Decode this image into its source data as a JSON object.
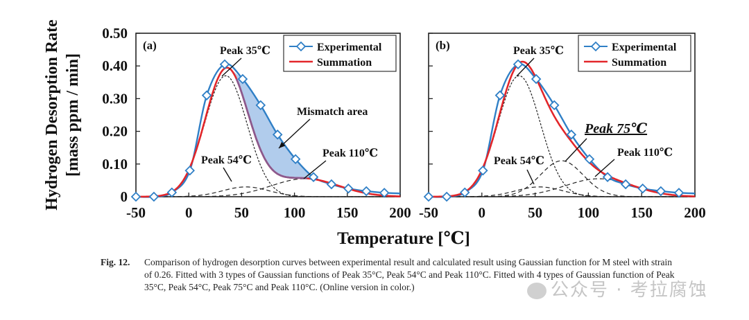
{
  "figure": {
    "ylabel_line1": "Hydrogen Desorption Rate",
    "ylabel_line2": "[mass ppm / min]",
    "xlabel": "Temperature [℃]",
    "caption_label": "Fig. 12.",
    "caption_text": "Comparison of hydrogen desorption curves between experimental result and calculated result using Gaussian function for M steel with strain of 0.26. Fitted with 3 types of Gaussian functions of Peak 35°C, Peak 54°C and Peak 110°C. Fitted with 4 types of Gaussian function of Peak 35°C, Peak 54°C, Peak 75°C and Peak 110°C. (Online version in color.)",
    "watermark": "公众号 · 考拉腐蚀"
  },
  "chart_data": [
    {
      "type": "line",
      "panel_label": "(a)",
      "title": "",
      "xlabel": "Temperature [℃]",
      "ylabel": "Hydrogen Desorption Rate [mass ppm / min]",
      "xlim": [
        -50,
        200
      ],
      "ylim": [
        0,
        0.5
      ],
      "xticks": [
        "-50",
        "0",
        "50",
        "100",
        "150",
        "200"
      ],
      "xtick_values": [
        -50,
        0,
        50,
        100,
        150,
        200
      ],
      "yticks": [
        "0",
        "0.10",
        "0.20",
        "0.30",
        "0.40",
        "0.50"
      ],
      "ytick_values": [
        0,
        0.1,
        0.2,
        0.3,
        0.4,
        0.5
      ],
      "grid": false,
      "legend": {
        "position": "top-right",
        "entries": [
          "Experimental",
          "Summation"
        ]
      },
      "colors": {
        "experimental": "#2f7fc6",
        "summation": "#e3262a",
        "mismatch_fill": "#a9c7ea",
        "components": "#222222"
      },
      "series": [
        {
          "name": "Experimental",
          "marker": "diamond",
          "x": [
            -50,
            -33,
            -16,
            1,
            17,
            34,
            51,
            68,
            84,
            101,
            118,
            135,
            151,
            168,
            185,
            200
          ],
          "y": [
            0.0,
            0.0,
            0.013,
            0.08,
            0.31,
            0.405,
            0.36,
            0.28,
            0.19,
            0.115,
            0.06,
            0.038,
            0.025,
            0.017,
            0.012,
            0.01
          ]
        },
        {
          "name": "Summation",
          "gaussians": [
            {
              "center": 35,
              "amp": 0.37,
              "sigma": 20
            },
            {
              "center": 54,
              "amp": 0.03,
              "sigma": 22
            },
            {
              "center": 110,
              "amp": 0.055,
              "sigma": 32
            }
          ]
        }
      ],
      "components": [
        {
          "name": "Peak 35℃",
          "center": 35,
          "amp": 0.37,
          "sigma": 20,
          "style": "dotted"
        },
        {
          "name": "Peak 54℃",
          "center": 54,
          "amp": 0.03,
          "sigma": 22,
          "style": "dashed"
        },
        {
          "name": "Peak 110℃",
          "center": 110,
          "amp": 0.055,
          "sigma": 32,
          "style": "dashed"
        }
      ],
      "annotations": [
        {
          "text": "Peak 35℃",
          "target_x": 38,
          "target_y": 0.37
        },
        {
          "text": "Peak 54℃",
          "target_x": 58,
          "target_y": 0.03
        },
        {
          "text": "Peak 110℃",
          "target_x": 110,
          "target_y": 0.07
        },
        {
          "text": "Mismatch area",
          "target_x": 85,
          "target_y": 0.14
        }
      ]
    },
    {
      "type": "line",
      "panel_label": "(b)",
      "title": "",
      "xlabel": "Temperature [℃]",
      "ylabel": "Hydrogen Desorption Rate [mass ppm / min]",
      "xlim": [
        -50,
        200
      ],
      "ylim": [
        0,
        0.5
      ],
      "xticks": [
        "-50",
        "0",
        "50",
        "100",
        "150",
        "200"
      ],
      "xtick_values": [
        -50,
        0,
        50,
        100,
        150,
        200
      ],
      "yticks": [
        "0",
        "0.10",
        "0.20",
        "0.30",
        "0.40",
        "0.50"
      ],
      "ytick_values": [
        0,
        0.1,
        0.2,
        0.3,
        0.4,
        0.5
      ],
      "grid": false,
      "legend": {
        "position": "top-right",
        "entries": [
          "Experimental",
          "Summation"
        ]
      },
      "colors": {
        "experimental": "#2f7fc6",
        "summation": "#e3262a",
        "components": "#222222"
      },
      "series": [
        {
          "name": "Experimental",
          "marker": "diamond",
          "x": [
            -50,
            -33,
            -16,
            1,
            17,
            34,
            51,
            68,
            84,
            101,
            118,
            135,
            151,
            168,
            185,
            200
          ],
          "y": [
            0.0,
            0.0,
            0.013,
            0.08,
            0.31,
            0.405,
            0.36,
            0.28,
            0.19,
            0.115,
            0.06,
            0.038,
            0.025,
            0.017,
            0.012,
            0.01
          ]
        },
        {
          "name": "Summation",
          "gaussians": [
            {
              "center": 35,
              "amp": 0.37,
              "sigma": 20
            },
            {
              "center": 54,
              "amp": 0.03,
              "sigma": 22
            },
            {
              "center": 75,
              "amp": 0.11,
              "sigma": 20
            },
            {
              "center": 110,
              "amp": 0.055,
              "sigma": 32
            }
          ]
        }
      ],
      "components": [
        {
          "name": "Peak 35℃",
          "center": 35,
          "amp": 0.37,
          "sigma": 20,
          "style": "dotted"
        },
        {
          "name": "Peak 54℃",
          "center": 54,
          "amp": 0.03,
          "sigma": 22,
          "style": "dashed"
        },
        {
          "name": "Peak 75℃",
          "center": 75,
          "amp": 0.11,
          "sigma": 20,
          "style": "dashed"
        },
        {
          "name": "Peak 110℃",
          "center": 110,
          "amp": 0.055,
          "sigma": 32,
          "style": "dashed"
        }
      ],
      "annotations": [
        {
          "text": "Peak 35℃",
          "target_x": 38,
          "target_y": 0.37
        },
        {
          "text": "Peak 54℃",
          "target_x": 52,
          "target_y": 0.03
        },
        {
          "text": "Peak 75℃",
          "target_x": 78,
          "target_y": 0.11,
          "emphasis": true
        },
        {
          "text": "Peak 110℃",
          "target_x": 105,
          "target_y": 0.065
        }
      ]
    }
  ]
}
